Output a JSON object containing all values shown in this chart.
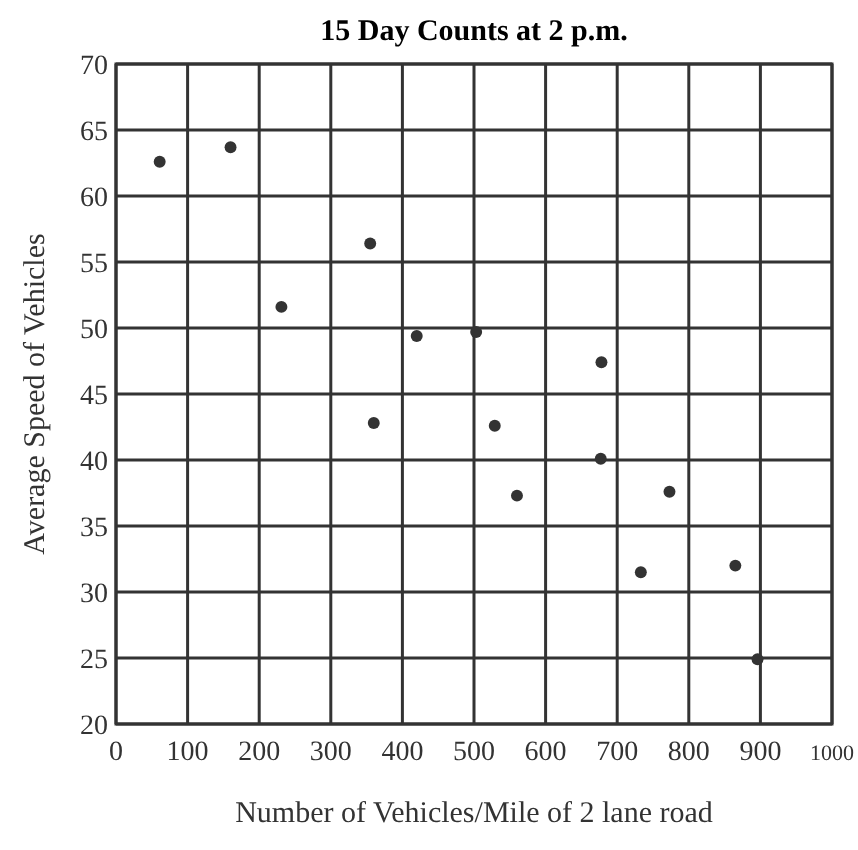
{
  "chart_data": {
    "type": "scatter",
    "title": "15 Day Counts at 2 p.m.",
    "xlabel": "Number of Vehicles/Mile of 2 lane road",
    "ylabel": "Average Speed of Vehicles",
    "x": [
      61,
      160,
      231,
      355,
      360,
      420,
      503,
      529,
      560,
      677,
      678,
      733,
      773,
      865,
      896
    ],
    "values": [
      62.6,
      63.7,
      51.6,
      56.4,
      42.8,
      49.4,
      49.7,
      42.6,
      37.3,
      40.1,
      47.4,
      31.5,
      37.6,
      32,
      24.9
    ],
    "color": "#333333",
    "marker": "circle",
    "grid": true,
    "xlim": [
      0,
      1000
    ],
    "xticks": [
      0,
      100,
      200,
      300,
      400,
      500,
      600,
      700,
      800,
      900,
      1000
    ],
    "ylim": [
      20,
      70
    ],
    "yticks": [
      20,
      25,
      30,
      35,
      40,
      45,
      50,
      55,
      60,
      65,
      70
    ]
  }
}
